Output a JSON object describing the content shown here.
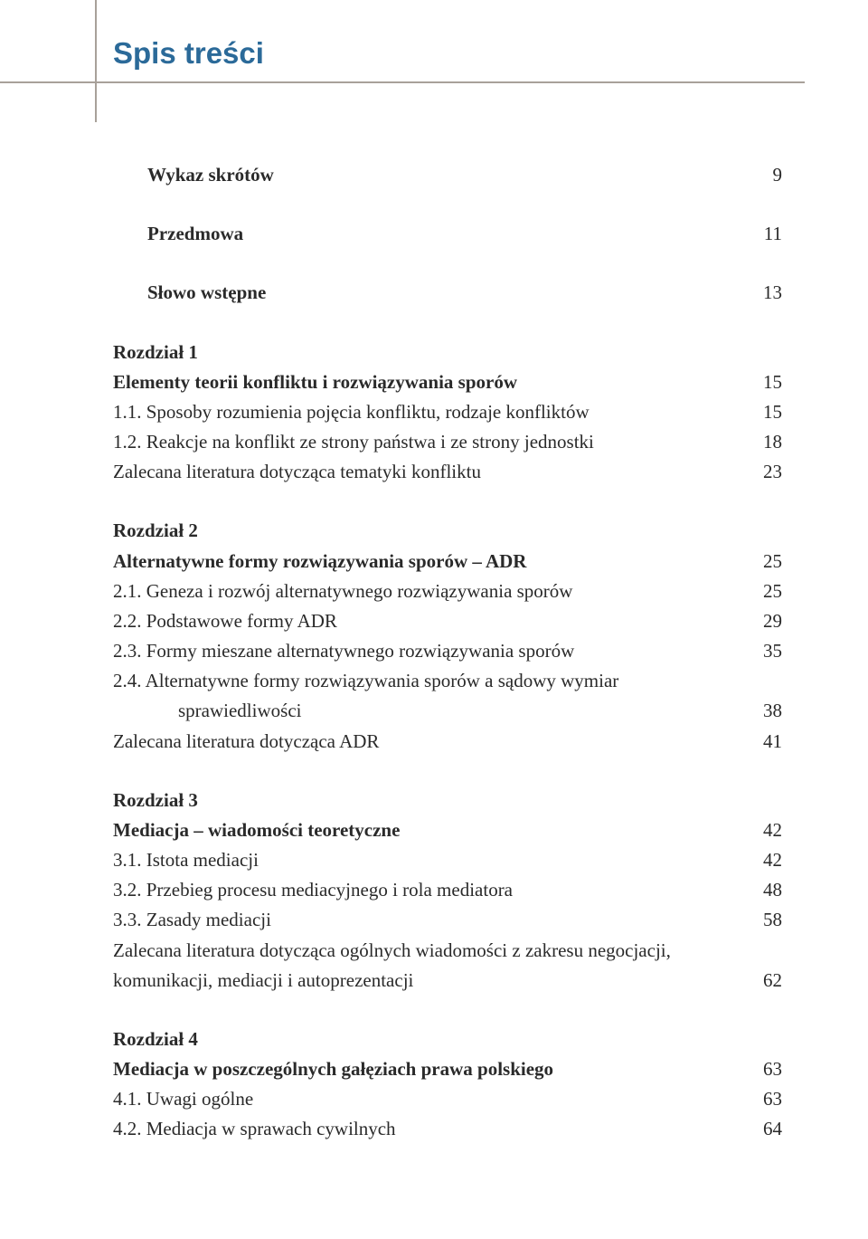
{
  "heading": "Spis treści",
  "colors": {
    "heading": "#2b6a99",
    "rule": "#a8a19a",
    "text": "#2a2a2a",
    "background": "#ffffff"
  },
  "typography": {
    "heading_family": "Trebuchet MS",
    "heading_size_pt": 25,
    "body_family": "Palatino Linotype",
    "body_size_pt": 16,
    "line_height": 1.58
  },
  "toc": {
    "front_matter": [
      {
        "label": "Wykaz skrótów",
        "page": "9",
        "bold": true,
        "indent": 1
      },
      {
        "label": "Przedmowa",
        "page": "11",
        "bold": true,
        "indent": 1
      },
      {
        "label": "Słowo wstępne",
        "page": "13",
        "bold": true,
        "indent": 1
      }
    ],
    "chapters": [
      {
        "number": "Rozdział 1",
        "title": "Elementy teorii konfliktu i rozwiązywania sporów",
        "page": "15",
        "items": [
          {
            "label": "1.1. Sposoby rozumienia pojęcia konfliktu, rodzaje konfliktów",
            "page": "15"
          },
          {
            "label": "1.2. Reakcje na konflikt ze strony państwa i ze strony jednostki",
            "page": "18"
          },
          {
            "label": "Zalecana literatura dotycząca tematyki konfliktu",
            "page": "23"
          }
        ]
      },
      {
        "number": "Rozdział 2",
        "title": "Alternatywne formy rozwiązywania sporów – ADR",
        "page": "25",
        "items": [
          {
            "label": "2.1. Geneza i rozwój alternatywnego rozwiązywania sporów",
            "page": "25"
          },
          {
            "label": "2.2. Podstawowe formy ADR",
            "page": "29"
          },
          {
            "label": "2.3. Formy mieszane alternatywnego rozwiązywania sporów",
            "page": "35"
          },
          {
            "label_line1": "2.4. Alternatywne formy rozwiązywania sporów a sądowy wymiar",
            "label_line2": "sprawiedliwości",
            "page": "38",
            "wrap": true
          },
          {
            "label": "Zalecana literatura dotycząca ADR",
            "page": "41"
          }
        ]
      },
      {
        "number": "Rozdział 3",
        "title": "Mediacja – wiadomości teoretyczne",
        "page": "42",
        "items": [
          {
            "label": "3.1. Istota mediacji",
            "page": "42"
          },
          {
            "label": "3.2. Przebieg procesu mediacyjnego i rola mediatora",
            "page": "48"
          },
          {
            "label": "3.3. Zasady mediacji",
            "page": "58"
          },
          {
            "label_line1": "Zalecana literatura dotycząca ogólnych wiadomości z zakresu negocjacji,",
            "label_line2": "komunikacji, mediacji i autoprezentacji",
            "page": "62",
            "wrap": true,
            "no_indent": true
          }
        ]
      },
      {
        "number": "Rozdział 4",
        "title": "Mediacja w poszczególnych gałęziach prawa polskiego",
        "page": "63",
        "items": [
          {
            "label": "4.1. Uwagi ogólne",
            "page": "63"
          },
          {
            "label": "4.2. Mediacja w sprawach cywilnych",
            "page": "64"
          }
        ]
      }
    ]
  }
}
